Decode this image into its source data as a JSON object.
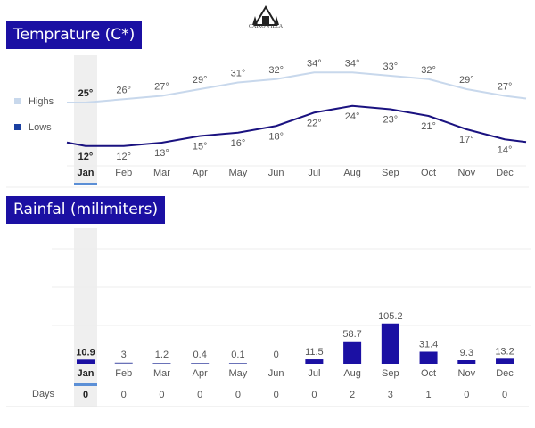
{
  "logo": {
    "text": "CAIRO VILLA"
  },
  "temperature": {
    "title": "Temprature (C*)"
  },
  "rainfall": {
    "title": "Rainfal (milimiters)"
  },
  "chart_data": [
    {
      "type": "line",
      "title": "Temprature (C*)",
      "categories": [
        "Jan",
        "Feb",
        "Mar",
        "Apr",
        "May",
        "Jun",
        "Jul",
        "Aug",
        "Sep",
        "Oct",
        "Nov",
        "Dec"
      ],
      "series": [
        {
          "name": "Highs",
          "color": "#c8d8ec",
          "values": [
            25,
            26,
            27,
            29,
            31,
            32,
            34,
            34,
            33,
            32,
            29,
            27
          ]
        },
        {
          "name": "Lows",
          "color": "#1a1280",
          "values": [
            12,
            12,
            13,
            15,
            16,
            18,
            22,
            24,
            23,
            21,
            17,
            14
          ]
        }
      ],
      "value_suffix": "°",
      "legend": "left",
      "selected": "Jan"
    },
    {
      "type": "bar",
      "title": "Rainfal (milimiters)",
      "categories": [
        "Jan",
        "Feb",
        "Mar",
        "Apr",
        "May",
        "Jun",
        "Jul",
        "Aug",
        "Sep",
        "Oct",
        "Nov",
        "Dec"
      ],
      "values": [
        10.9,
        3,
        1.2,
        0.4,
        0.1,
        0,
        11.5,
        58.7,
        105.2,
        31.4,
        9.3,
        13.2
      ],
      "color": "#1b10a3",
      "grid": true,
      "days_label": "Days",
      "days": [
        0,
        0,
        0,
        0,
        0,
        0,
        0,
        2,
        3,
        1,
        0,
        0
      ],
      "selected": "Jan"
    }
  ]
}
